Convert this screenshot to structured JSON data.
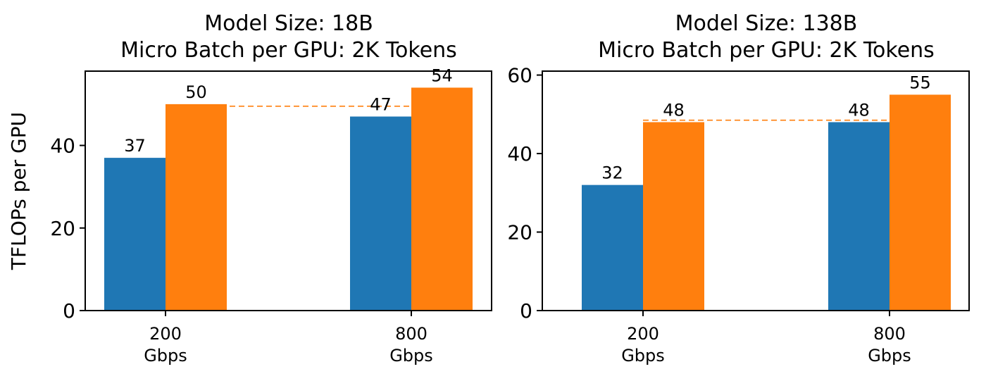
{
  "colors": {
    "series_a": "#1f77b4",
    "series_b": "#ff7f0e"
  },
  "chart_data": [
    {
      "type": "bar",
      "title_lines": [
        "Model Size: 18B",
        "Micro Batch per GPU: 2K Tokens"
      ],
      "ylabel": "TFLOPs per GPU",
      "xlabel": "",
      "categories": [
        [
          "200",
          "Gbps"
        ],
        [
          "800",
          "Gbps"
        ]
      ],
      "series": [
        {
          "name": "series_a",
          "values": [
            37,
            47
          ],
          "labels": [
            "37",
            "47"
          ]
        },
        {
          "name": "series_b",
          "values": [
            50,
            54
          ],
          "labels": [
            "50",
            "54"
          ]
        }
      ],
      "ylim": [
        0,
        58
      ],
      "yticks": [
        0,
        20,
        40
      ],
      "reference_line": {
        "value": 49.5,
        "style": "dashed",
        "color": "#ff7f0e"
      },
      "grid": false
    },
    {
      "type": "bar",
      "title_lines": [
        "Model Size: 138B",
        "Micro Batch per GPU: 2K Tokens"
      ],
      "ylabel": "",
      "xlabel": "",
      "categories": [
        [
          "200",
          "Gbps"
        ],
        [
          "800",
          "Gbps"
        ]
      ],
      "series": [
        {
          "name": "series_a",
          "values": [
            32,
            48
          ],
          "labels": [
            "32",
            "48"
          ]
        },
        {
          "name": "series_b",
          "values": [
            48,
            55
          ],
          "labels": [
            "48",
            "55"
          ]
        }
      ],
      "ylim": [
        0,
        61
      ],
      "yticks": [
        0,
        20,
        40,
        60
      ],
      "reference_line": {
        "value": 48.5,
        "style": "dashed",
        "color": "#ff7f0e"
      },
      "grid": false
    }
  ]
}
